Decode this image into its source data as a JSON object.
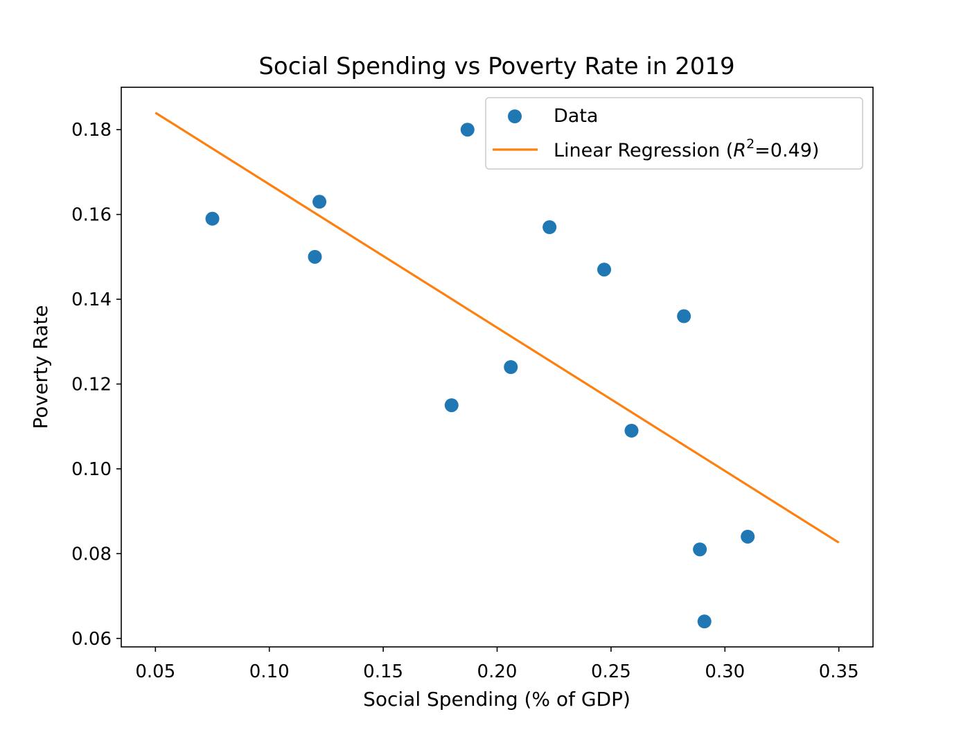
{
  "chart_data": {
    "type": "scatter",
    "title": "Social Spending vs Poverty Rate in 2019",
    "xlabel": "Social Spending (% of GDP)",
    "ylabel": "Poverty Rate",
    "xlim": [
      0.035,
      0.365
    ],
    "ylim": [
      0.058,
      0.19
    ],
    "xticks": [
      0.05,
      0.1,
      0.15,
      0.2,
      0.25,
      0.3,
      0.35
    ],
    "xtick_labels": [
      "0.05",
      "0.10",
      "0.15",
      "0.20",
      "0.25",
      "0.30",
      "0.35"
    ],
    "yticks": [
      0.06,
      0.08,
      0.1,
      0.12,
      0.14,
      0.16,
      0.18
    ],
    "ytick_labels": [
      "0.06",
      "0.08",
      "0.10",
      "0.12",
      "0.14",
      "0.16",
      "0.18"
    ],
    "grid": false,
    "legend_position": "top-right",
    "series": [
      {
        "name": "Data",
        "type": "scatter",
        "color": "#1f77b4",
        "points": [
          {
            "x": 0.075,
            "y": 0.159
          },
          {
            "x": 0.12,
            "y": 0.15
          },
          {
            "x": 0.122,
            "y": 0.163
          },
          {
            "x": 0.18,
            "y": 0.115
          },
          {
            "x": 0.187,
            "y": 0.18
          },
          {
            "x": 0.206,
            "y": 0.124
          },
          {
            "x": 0.223,
            "y": 0.157
          },
          {
            "x": 0.247,
            "y": 0.147
          },
          {
            "x": 0.259,
            "y": 0.109
          },
          {
            "x": 0.282,
            "y": 0.136
          },
          {
            "x": 0.289,
            "y": 0.081
          },
          {
            "x": 0.291,
            "y": 0.064
          },
          {
            "x": 0.31,
            "y": 0.084
          }
        ]
      },
      {
        "name": "Linear Regression (R²=0.49)",
        "legend_main": "Linear Regression (",
        "legend_var": "R",
        "legend_sup": "2",
        "legend_rest": "=0.49)",
        "type": "line",
        "color": "#ff7f0e",
        "points": [
          {
            "x": 0.05,
            "y": 0.184
          },
          {
            "x": 0.35,
            "y": 0.0826
          }
        ]
      }
    ]
  }
}
